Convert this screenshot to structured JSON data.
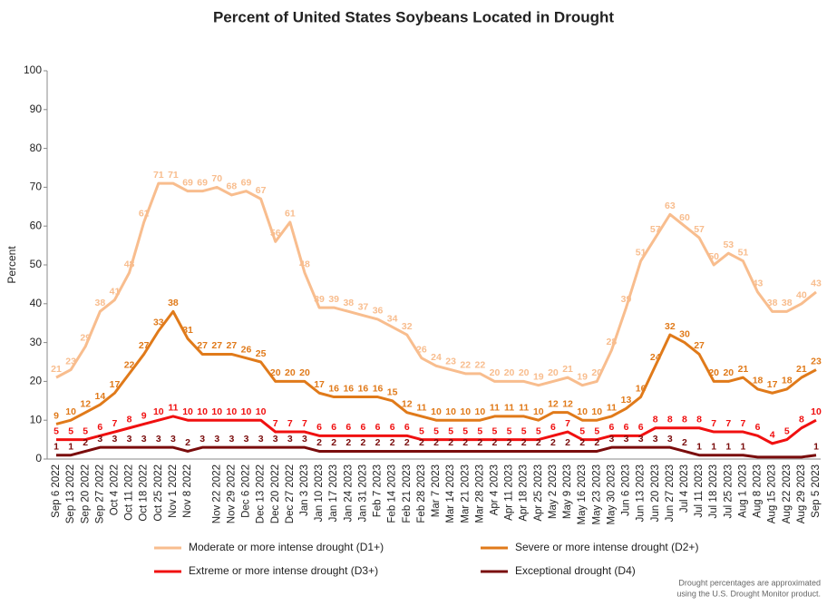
{
  "chart_data": {
    "type": "line",
    "title": "Percent of United States Soybeans Located in Drought",
    "y_label": "Percent",
    "note": [
      "Drought percentages are approximated",
      "using the U.S. Drought Monitor product."
    ],
    "categories": [
      "Sep 6 2022",
      "Sep 13 2022",
      "Sep 20 2022",
      "Sep 27 2022",
      "Oct 4 2022",
      "Oct 11 2022",
      "Oct 18 2022",
      "Oct 25 2022",
      "Nov 1 2022",
      "Nov 8 2022",
      null,
      "Nov 22 2022",
      "Nov 29 2022",
      "Dec 6 2022",
      "Dec 13 2022",
      "Dec 20 2022",
      "Dec 27 2022",
      "Jan 3 2023",
      "Jan 10 2023",
      "Jan 17 2023",
      "Jan 24 2023",
      "Jan 31 2023",
      "Feb 7 2023",
      "Feb 14 2023",
      "Feb 21 2023",
      "Feb 28 2023",
      "Mar 7 2023",
      "Mar 14 2023",
      "Mar 21 2023",
      "Mar 28 2023",
      "Apr 4 2023",
      "Apr 11 2023",
      "Apr 18 2023",
      "Apr 25 2023",
      "May 2 2023",
      "May 9 2023",
      "May 16 2023",
      "May 23 2023",
      "May 30 2023",
      "Jun 6 2023",
      "Jun 13 2023",
      "Jun 20 2023",
      "Jun 27 2023",
      "Jul 4 2023",
      "Jul 11 2023",
      "Jul 18 2023",
      "Jul 25 2023",
      "Aug 1 2023",
      "Aug 8 2023",
      "Aug 15 2023",
      "Aug 22 2023",
      "Aug 29 2023",
      "Sep 5 2023"
    ],
    "series": [
      {
        "name": "Moderate or more intense drought (D1+)",
        "color": "#f8bd8e",
        "values": [
          21,
          23,
          29,
          38,
          41,
          48,
          61,
          71,
          71,
          69,
          69,
          70,
          68,
          69,
          67,
          56,
          61,
          48,
          39,
          39,
          38,
          37,
          36,
          34,
          32,
          26,
          24,
          23,
          22,
          22,
          20,
          20,
          20,
          19,
          20,
          21,
          19,
          20,
          28,
          39,
          51,
          57,
          63,
          60,
          57,
          50,
          53,
          51,
          43,
          38,
          38,
          40,
          43
        ]
      },
      {
        "name": "Severe or more intense drought (D2+)",
        "color": "#e07a1a",
        "values": [
          9,
          10,
          12,
          14,
          17,
          22,
          27,
          33,
          38,
          31,
          27,
          27,
          27,
          26,
          25,
          20,
          20,
          20,
          17,
          16,
          16,
          16,
          16,
          15,
          12,
          11,
          10,
          10,
          10,
          10,
          11,
          11,
          11,
          10,
          12,
          12,
          10,
          10,
          11,
          13,
          16,
          24,
          32,
          30,
          27,
          20,
          20,
          21,
          18,
          17,
          18,
          21,
          23
        ]
      },
      {
        "name": "Extreme or more intense drought (D3+)",
        "color": "#f01010",
        "values": [
          5,
          5,
          5,
          6,
          7,
          8,
          9,
          10,
          11,
          10,
          10,
          10,
          10,
          10,
          10,
          7,
          7,
          7,
          6,
          6,
          6,
          6,
          6,
          6,
          6,
          5,
          5,
          5,
          5,
          5,
          5,
          5,
          5,
          5,
          6,
          7,
          5,
          5,
          6,
          6,
          6,
          8,
          8,
          8,
          8,
          7,
          7,
          7,
          6,
          4,
          5,
          8,
          10
        ]
      },
      {
        "name": "Exceptional drought (D4)",
        "color": "#7a0c0c",
        "values": [
          1,
          1,
          2,
          3,
          3,
          3,
          3,
          3,
          3,
          2,
          3,
          3,
          3,
          3,
          3,
          3,
          3,
          3,
          2,
          2,
          2,
          2,
          2,
          2,
          2,
          2,
          2,
          2,
          2,
          2,
          2,
          2,
          2,
          2,
          2,
          2,
          2,
          2,
          3,
          3,
          3,
          3,
          3,
          2,
          1,
          1,
          1,
          1,
          0.5,
          0.5,
          0.5,
          0.5,
          1
        ],
        "value_labels": [
          "1",
          "1",
          "2",
          "3",
          "3",
          "3",
          "3",
          "3",
          "3",
          "2",
          "3",
          "3",
          "3",
          "3",
          "3",
          "3",
          "3",
          "3",
          "2",
          "2",
          "2",
          "2",
          "2",
          "2",
          "2",
          "2",
          "2",
          "2",
          "2",
          "2",
          "2",
          "2",
          "2",
          "2",
          "2",
          "2",
          "2",
          "2",
          "3",
          "3",
          "3",
          "3",
          "3",
          "2",
          "1",
          "1",
          "1",
          "1",
          null,
          null,
          null,
          null,
          "1"
        ]
      }
    ],
    "ylim": [
      0,
      100
    ],
    "yticks": [
      0,
      10,
      20,
      30,
      40,
      50,
      60,
      70,
      80,
      90,
      100
    ],
    "grid": false
  }
}
